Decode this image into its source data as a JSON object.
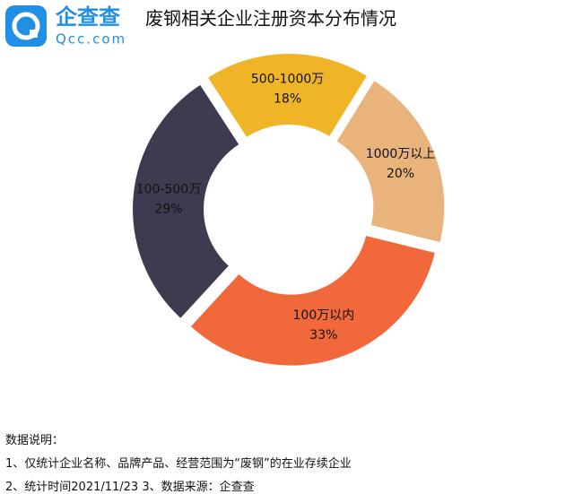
{
  "logo": {
    "name": "企查查",
    "domain": "Qcc.com"
  },
  "chart_data": {
    "type": "donut",
    "title": "废钢相关企业注册资本分布情况",
    "categories": [
      "500-1000万",
      "1000万以上",
      "100万以内",
      "100-500万"
    ],
    "values": [
      18,
      20,
      33,
      29
    ],
    "value_labels": [
      "18%",
      "20%",
      "33%",
      "29%"
    ],
    "colors": [
      "#f0b527",
      "#e8b47c",
      "#f1683b",
      "#3e3b51"
    ]
  },
  "notes": [
    "数据说明：",
    "1、仅统计企业名称、品牌产品、经营范围为“废钢”的在业存续企业",
    "2、统计时间2021/11/23   3、数据来源：企查查"
  ]
}
